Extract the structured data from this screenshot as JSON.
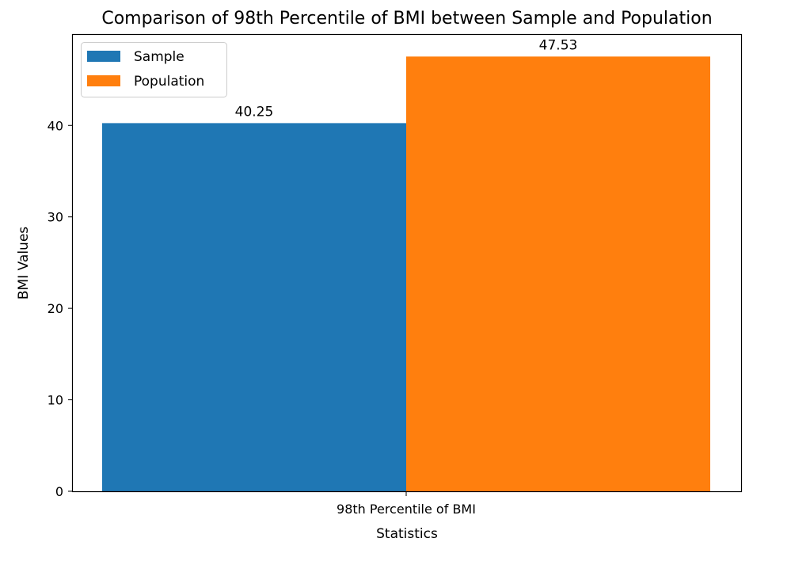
{
  "chart_data": {
    "type": "bar",
    "title": "Comparison of 98th Percentile of BMI between Sample and Population",
    "xlabel": "Statistics",
    "ylabel": "BMI Values",
    "categories": [
      "98th Percentile of BMI"
    ],
    "series": [
      {
        "name": "Sample",
        "values": [
          40.25
        ],
        "color": "#1f77b4",
        "label": "40.25"
      },
      {
        "name": "Population",
        "values": [
          47.53
        ],
        "color": "#ff7f0e",
        "label": "47.53"
      }
    ],
    "ylim": [
      0,
      49.9
    ],
    "yticks": [
      0,
      10,
      20,
      30,
      40
    ],
    "grid": false,
    "legend_position": "top-left"
  }
}
